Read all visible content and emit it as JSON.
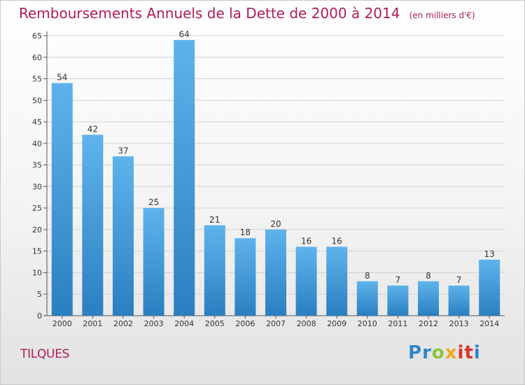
{
  "header": {
    "title": "Remboursements Annuels de la Dette de 2000 à 2014",
    "unit": "(en milliers d'€)"
  },
  "footer": {
    "commune": "TILQUES",
    "brand": "Proxiti"
  },
  "colors": {
    "title": "#b01c5a",
    "bar_top": "#5fb3ec",
    "bar_bottom": "#2a7fc0",
    "brand_letters": [
      "#2f86c8",
      "#8cc43c",
      "#f2a51c",
      "#d8322a",
      "#2f86c8"
    ]
  },
  "chart_data": {
    "type": "bar",
    "title": "Remboursements Annuels de la Dette de 2000 à 2014",
    "subtitle": "(en milliers d'€)",
    "xlabel": "",
    "ylabel": "",
    "categories": [
      "2000",
      "2001",
      "2002",
      "2003",
      "2004",
      "2005",
      "2006",
      "2007",
      "2008",
      "2009",
      "2010",
      "2011",
      "2012",
      "2013",
      "2014"
    ],
    "values": [
      54,
      42,
      37,
      25,
      64,
      21,
      18,
      20,
      16,
      16,
      8,
      7,
      8,
      7,
      13
    ],
    "ylim": [
      0,
      65
    ],
    "yticks": [
      0,
      5,
      10,
      15,
      20,
      25,
      30,
      35,
      40,
      45,
      50,
      55,
      60,
      65
    ],
    "grid": true,
    "legend": "none"
  }
}
